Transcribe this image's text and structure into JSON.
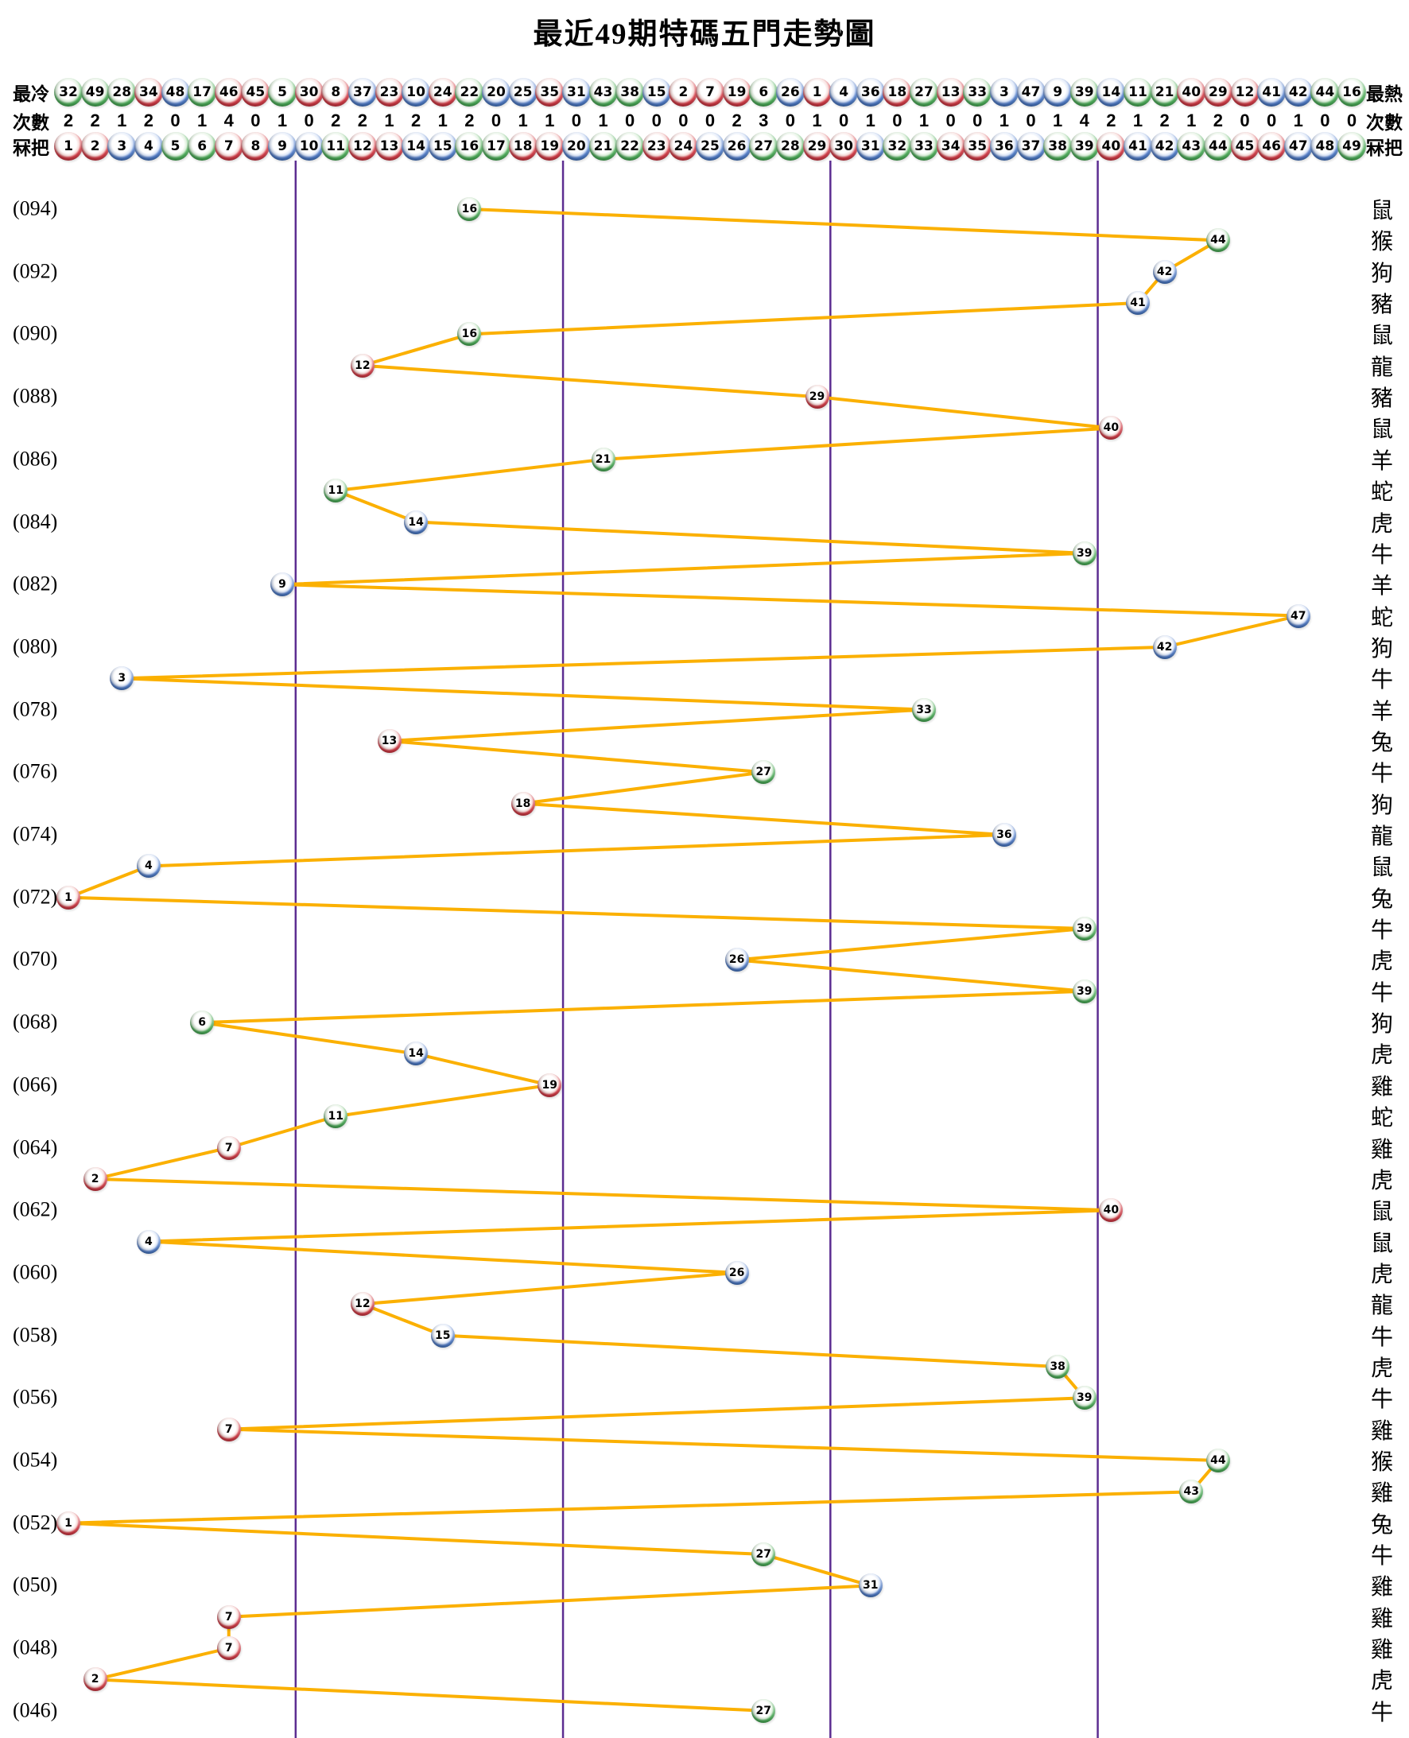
{
  "title": "最近49期特碼五門走勢圖",
  "header": {
    "cold_label": "最冷",
    "hot_label": "最熱",
    "count_label_left": "次數",
    "count_label_right": "次數",
    "number_label_left": "冧把",
    "number_label_right": "冧把"
  },
  "colors": {
    "line": "#FBB000",
    "divider": "#5C2D91",
    "ball_red": "#C42430",
    "ball_blue": "#2C62B4",
    "ball_green": "#2F9D3F"
  },
  "ball_color_groups": {
    "red": [
      1,
      2,
      7,
      8,
      12,
      13,
      18,
      19,
      23,
      24,
      29,
      30,
      34,
      35,
      40,
      45,
      46
    ],
    "blue": [
      3,
      4,
      9,
      10,
      14,
      15,
      20,
      25,
      26,
      31,
      36,
      37,
      41,
      42,
      47,
      48
    ],
    "green": [
      5,
      6,
      11,
      16,
      17,
      21,
      22,
      27,
      28,
      32,
      33,
      38,
      39,
      43,
      44,
      49
    ]
  },
  "chart_data": {
    "type": "line",
    "title": "最近49期特碼五門走勢圖",
    "xlabel": "冧把",
    "ylabel": "期數",
    "x_range": [
      1,
      49
    ],
    "gates": [
      [
        1,
        9
      ],
      [
        10,
        19
      ],
      [
        20,
        29
      ],
      [
        30,
        39
      ],
      [
        40,
        49
      ]
    ],
    "gate_dividers": [
      9.5,
      19.5,
      29.5,
      39.5
    ],
    "cold_order": [
      32,
      49,
      28,
      34,
      48,
      17,
      46,
      45,
      5,
      30,
      8,
      37,
      23,
      10,
      24,
      22,
      20,
      25,
      35,
      31,
      43,
      38,
      15,
      2,
      7,
      19,
      6,
      26,
      1,
      4,
      36,
      18,
      27,
      13,
      33,
      3,
      47,
      9,
      39,
      14,
      11,
      21,
      40,
      29,
      12,
      41,
      42,
      44,
      16
    ],
    "counts": [
      2,
      2,
      1,
      2,
      0,
      1,
      4,
      0,
      1,
      0,
      2,
      2,
      1,
      2,
      1,
      2,
      0,
      1,
      1,
      0,
      1,
      0,
      0,
      0,
      0,
      2,
      3,
      0,
      1,
      0,
      1,
      0,
      1,
      0,
      0,
      1,
      0,
      1,
      4,
      2,
      1,
      2,
      1,
      2,
      0,
      0,
      1,
      0,
      0
    ],
    "numbers": [
      1,
      2,
      3,
      4,
      5,
      6,
      7,
      8,
      9,
      10,
      11,
      12,
      13,
      14,
      15,
      16,
      17,
      18,
      19,
      20,
      21,
      22,
      23,
      24,
      25,
      26,
      27,
      28,
      29,
      30,
      31,
      32,
      33,
      34,
      35,
      36,
      37,
      38,
      39,
      40,
      41,
      42,
      43,
      44,
      45,
      46,
      47,
      48,
      49
    ],
    "periods": [
      {
        "period": "094",
        "label": "(094)",
        "number": 16,
        "zodiac": "鼠"
      },
      {
        "period": "093",
        "label": "",
        "number": 44,
        "zodiac": "猴"
      },
      {
        "period": "092",
        "label": "(092)",
        "number": 42,
        "zodiac": "狗"
      },
      {
        "period": "091",
        "label": "",
        "number": 41,
        "zodiac": "豬"
      },
      {
        "period": "090",
        "label": "(090)",
        "number": 16,
        "zodiac": "鼠"
      },
      {
        "period": "089",
        "label": "",
        "number": 12,
        "zodiac": "龍"
      },
      {
        "period": "088",
        "label": "(088)",
        "number": 29,
        "zodiac": "豬"
      },
      {
        "period": "087",
        "label": "",
        "number": 40,
        "zodiac": "鼠"
      },
      {
        "period": "086",
        "label": "(086)",
        "number": 21,
        "zodiac": "羊"
      },
      {
        "period": "085",
        "label": "",
        "number": 11,
        "zodiac": "蛇"
      },
      {
        "period": "084",
        "label": "(084)",
        "number": 14,
        "zodiac": "虎"
      },
      {
        "period": "083",
        "label": "",
        "number": 39,
        "zodiac": "牛"
      },
      {
        "period": "082",
        "label": "(082)",
        "number": 9,
        "zodiac": "羊"
      },
      {
        "period": "081",
        "label": "",
        "number": 47,
        "zodiac": "蛇"
      },
      {
        "period": "080",
        "label": "(080)",
        "number": 42,
        "zodiac": "狗"
      },
      {
        "period": "079",
        "label": "",
        "number": 3,
        "zodiac": "牛"
      },
      {
        "period": "078",
        "label": "(078)",
        "number": 33,
        "zodiac": "羊"
      },
      {
        "period": "077",
        "label": "",
        "number": 13,
        "zodiac": "兔"
      },
      {
        "period": "076",
        "label": "(076)",
        "number": 27,
        "zodiac": "牛"
      },
      {
        "period": "075",
        "label": "",
        "number": 18,
        "zodiac": "狗"
      },
      {
        "period": "074",
        "label": "(074)",
        "number": 36,
        "zodiac": "龍"
      },
      {
        "period": "073",
        "label": "",
        "number": 4,
        "zodiac": "鼠"
      },
      {
        "period": "072",
        "label": "(072)",
        "number": 1,
        "zodiac": "兔"
      },
      {
        "period": "071",
        "label": "",
        "number": 39,
        "zodiac": "牛"
      },
      {
        "period": "070",
        "label": "(070)",
        "number": 26,
        "zodiac": "虎"
      },
      {
        "period": "069",
        "label": "",
        "number": 39,
        "zodiac": "牛"
      },
      {
        "period": "068",
        "label": "(068)",
        "number": 6,
        "zodiac": "狗"
      },
      {
        "period": "067",
        "label": "",
        "number": 14,
        "zodiac": "虎"
      },
      {
        "period": "066",
        "label": "(066)",
        "number": 19,
        "zodiac": "雞"
      },
      {
        "period": "065",
        "label": "",
        "number": 11,
        "zodiac": "蛇"
      },
      {
        "period": "064",
        "label": "(064)",
        "number": 7,
        "zodiac": "雞"
      },
      {
        "period": "063",
        "label": "",
        "number": 2,
        "zodiac": "虎"
      },
      {
        "period": "062",
        "label": "(062)",
        "number": 40,
        "zodiac": "鼠"
      },
      {
        "period": "061",
        "label": "",
        "number": 4,
        "zodiac": "鼠"
      },
      {
        "period": "060",
        "label": "(060)",
        "number": 26,
        "zodiac": "虎"
      },
      {
        "period": "059",
        "label": "",
        "number": 12,
        "zodiac": "龍"
      },
      {
        "period": "058",
        "label": "(058)",
        "number": 15,
        "zodiac": "牛"
      },
      {
        "period": "057",
        "label": "",
        "number": 38,
        "zodiac": "虎"
      },
      {
        "period": "056",
        "label": "(056)",
        "number": 39,
        "zodiac": "牛"
      },
      {
        "period": "055",
        "label": "",
        "number": 7,
        "zodiac": "雞"
      },
      {
        "period": "054",
        "label": "(054)",
        "number": 44,
        "zodiac": "猴"
      },
      {
        "period": "053",
        "label": "",
        "number": 43,
        "zodiac": "雞"
      },
      {
        "period": "052",
        "label": "(052)",
        "number": 1,
        "zodiac": "兔"
      },
      {
        "period": "051",
        "label": "",
        "number": 27,
        "zodiac": "牛"
      },
      {
        "period": "050",
        "label": "(050)",
        "number": 31,
        "zodiac": "雞"
      },
      {
        "period": "049",
        "label": "",
        "number": 7,
        "zodiac": "雞"
      },
      {
        "period": "048",
        "label": "(048)",
        "number": 7,
        "zodiac": "雞"
      },
      {
        "period": "047",
        "label": "",
        "number": 2,
        "zodiac": "虎"
      },
      {
        "period": "046",
        "label": "(046)",
        "number": 27,
        "zodiac": "牛"
      }
    ]
  }
}
